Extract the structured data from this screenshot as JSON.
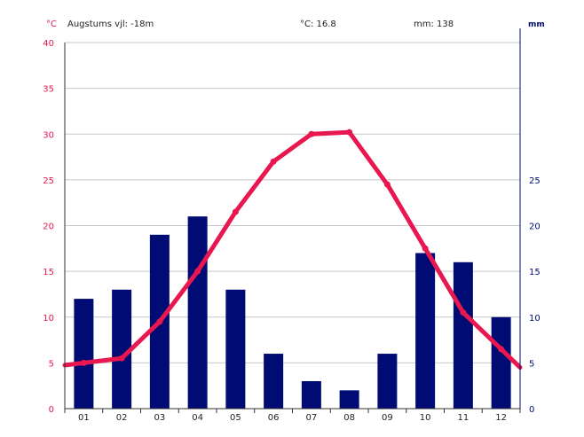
{
  "header": {
    "altitude": "Augstums vjl: -18m",
    "temp_avg": "°C: 16.8",
    "precip_total": "mm: 138"
  },
  "units": {
    "temp": "°C",
    "precip": "mm"
  },
  "colors": {
    "temp": "#e8174f",
    "precip": "#000c73",
    "grid": "#c8c8c8",
    "axis": "#000c73"
  },
  "chart_data": {
    "type": "bar",
    "categories": [
      "01",
      "02",
      "03",
      "04",
      "05",
      "06",
      "07",
      "08",
      "09",
      "10",
      "11",
      "12"
    ],
    "series": [
      {
        "values": [
          12,
          13,
          19,
          21,
          13,
          6,
          3,
          2,
          6,
          17,
          16,
          10
        ],
        "type": "bar",
        "axis": "right"
      },
      {
        "values": [
          5.0,
          5.5,
          9.5,
          15.0,
          21.5,
          27.0,
          30.0,
          30.2,
          24.5,
          17.5,
          10.5,
          6.5
        ],
        "type": "line",
        "axis": "left"
      }
    ],
    "ylabel": "°C",
    "ylabel_right": "mm",
    "ylim": [
      0,
      40
    ],
    "ylim_right": [
      0,
      40
    ],
    "yticks_left": [
      "0",
      "5",
      "10",
      "15",
      "20",
      "25",
      "30",
      "35",
      "40"
    ],
    "yticks_right": [
      "0",
      "5",
      "10",
      "15",
      "20",
      "25"
    ],
    "grid": true
  }
}
